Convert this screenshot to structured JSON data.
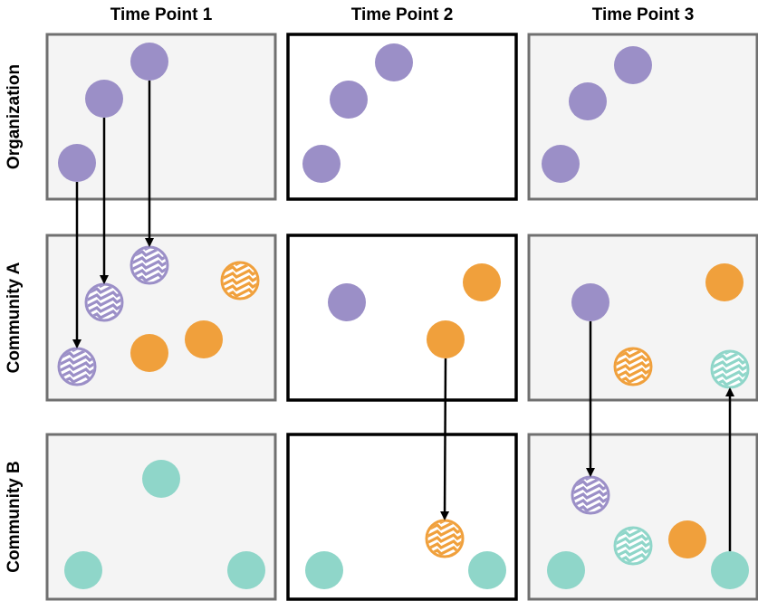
{
  "columns": [
    "Time Point 1",
    "Time Point 2",
    "Time Point 3"
  ],
  "rows": [
    "Organization",
    "Community A",
    "Community B"
  ],
  "colors": {
    "organization": "#9b8fc7",
    "community_a": "#f0a03c",
    "community_b": "#8fd6c9",
    "panel_fill_grey": "#f4f4f4",
    "panel_stroke_grey": "#707070",
    "panel_stroke_black": "#000000",
    "arrow": "#000000"
  },
  "panel_style": [
    [
      "grey",
      "black",
      "grey"
    ],
    [
      "grey",
      "black",
      "grey"
    ],
    [
      "grey",
      "black",
      "grey"
    ]
  ],
  "members": [
    {
      "id": "t1-org-1",
      "group": "organization",
      "hatched": false
    },
    {
      "id": "t1-org-2",
      "group": "organization",
      "hatched": false
    },
    {
      "id": "t1-org-3",
      "group": "organization",
      "hatched": false
    },
    {
      "id": "t1-a-1",
      "group": "organization",
      "hatched": true
    },
    {
      "id": "t1-a-2",
      "group": "organization",
      "hatched": true
    },
    {
      "id": "t1-a-3",
      "group": "organization",
      "hatched": true
    },
    {
      "id": "t1-a-4",
      "group": "community_a",
      "hatched": true
    },
    {
      "id": "t1-a-5",
      "group": "community_a",
      "hatched": false
    },
    {
      "id": "t1-a-6",
      "group": "community_a",
      "hatched": false
    },
    {
      "id": "t1-b-1",
      "group": "community_b",
      "hatched": false
    },
    {
      "id": "t1-b-2",
      "group": "community_b",
      "hatched": false
    },
    {
      "id": "t1-b-3",
      "group": "community_b",
      "hatched": false
    },
    {
      "id": "t2-org-1",
      "group": "organization",
      "hatched": false
    },
    {
      "id": "t2-org-2",
      "group": "organization",
      "hatched": false
    },
    {
      "id": "t2-org-3",
      "group": "organization",
      "hatched": false
    },
    {
      "id": "t2-a-1",
      "group": "organization",
      "hatched": false
    },
    {
      "id": "t2-a-2",
      "group": "community_a",
      "hatched": false
    },
    {
      "id": "t2-a-3",
      "group": "community_a",
      "hatched": false
    },
    {
      "id": "t2-b-1",
      "group": "community_a",
      "hatched": true
    },
    {
      "id": "t2-b-2",
      "group": "community_b",
      "hatched": false
    },
    {
      "id": "t2-b-3",
      "group": "community_b",
      "hatched": false
    },
    {
      "id": "t3-org-1",
      "group": "organization",
      "hatched": false
    },
    {
      "id": "t3-org-2",
      "group": "organization",
      "hatched": false
    },
    {
      "id": "t3-org-3",
      "group": "organization",
      "hatched": false
    },
    {
      "id": "t3-a-1",
      "group": "organization",
      "hatched": false
    },
    {
      "id": "t3-a-2",
      "group": "community_a",
      "hatched": false
    },
    {
      "id": "t3-a-3",
      "group": "community_a",
      "hatched": true
    },
    {
      "id": "t3-a-4",
      "group": "community_b",
      "hatched": true
    },
    {
      "id": "t3-b-1",
      "group": "organization",
      "hatched": true
    },
    {
      "id": "t3-b-2",
      "group": "community_b",
      "hatched": true
    },
    {
      "id": "t3-b-3",
      "group": "community_a",
      "hatched": false
    },
    {
      "id": "t3-b-4",
      "group": "community_b",
      "hatched": false
    },
    {
      "id": "t3-b-5",
      "group": "community_b",
      "hatched": false
    }
  ],
  "arrows": [
    {
      "from": "t1-org-1",
      "to": "t1-a-1"
    },
    {
      "from": "t1-org-2",
      "to": "t1-a-2"
    },
    {
      "from": "t1-org-3",
      "to": "t1-a-3"
    },
    {
      "from": "t2-a-3",
      "to": "t2-b-1"
    },
    {
      "from": "t3-a-1",
      "to": "t3-b-1"
    },
    {
      "from": "t3-b-5",
      "to": "t3-a-4"
    }
  ]
}
